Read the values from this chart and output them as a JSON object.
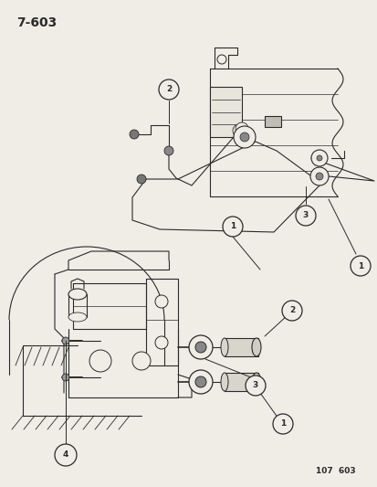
{
  "title": "7-603",
  "footer": "107  603",
  "bg_color": "#f0ede6",
  "line_color": "#2a2a2a",
  "fig_width": 4.14,
  "fig_height": 5.33,
  "dpi": 100
}
